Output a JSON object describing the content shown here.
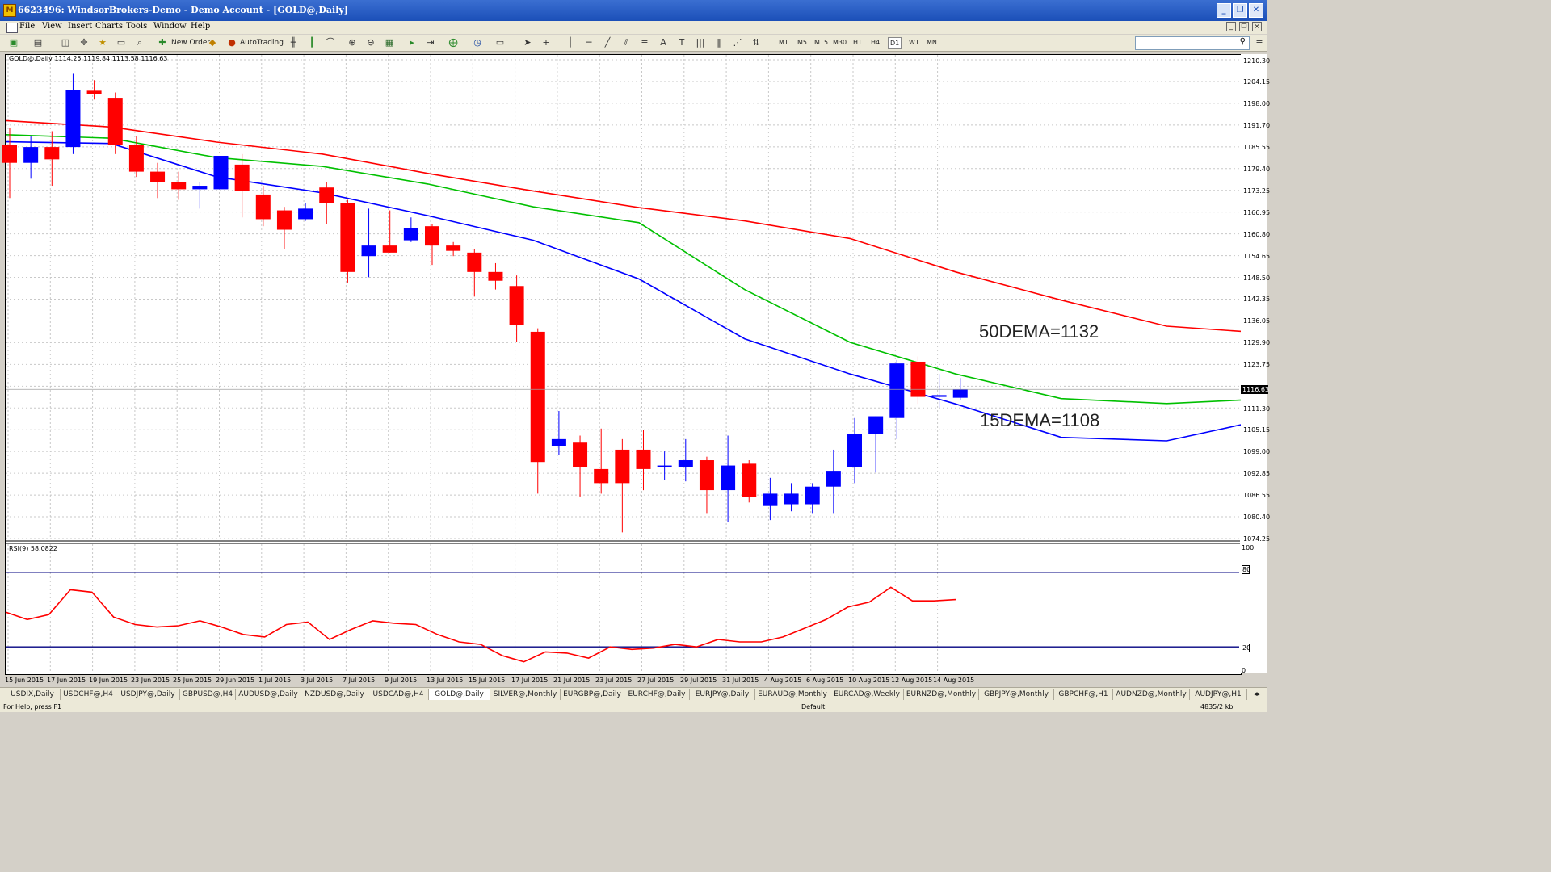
{
  "window": {
    "title": "6623496: WindsorBrokers-Demo - Demo Account - [GOLD@,Daily]",
    "app_icon": "mt4-logo-icon",
    "buttons": [
      "minimize-icon",
      "restore-icon",
      "close-icon"
    ]
  },
  "menu": [
    "File",
    "View",
    "Insert",
    "Charts",
    "Tools",
    "Window",
    "Help"
  ],
  "toolbar": {
    "new_order": "New Order",
    "autotrading": "AutoTrading",
    "timeframes": [
      "M1",
      "M5",
      "M15",
      "M30",
      "H1",
      "H4",
      "D1",
      "W1",
      "MN"
    ],
    "active_timeframe": "D1"
  },
  "chart": {
    "symbol_info": "GOLD@,Daily  1114.25 1119.84 1113.58 1116.63",
    "current_price": "1116.63",
    "rsi_info": "RSI(9) 58.0822",
    "price_labels": [
      "1210.30",
      "1204.15",
      "1198.00",
      "1191.70",
      "1185.55",
      "1179.40",
      "1173.25",
      "1166.95",
      "1160.80",
      "1154.65",
      "1148.50",
      "1142.35",
      "1136.05",
      "1129.90",
      "1123.75",
      "1111.30",
      "1105.15",
      "1099.00",
      "1092.85",
      "1086.55",
      "1080.40",
      "1074.25"
    ],
    "rsi_ticks": [
      "100",
      "80",
      "20",
      "0"
    ],
    "dates": [
      "15 Jun 2015",
      "17 Jun 2015",
      "19 Jun 2015",
      "23 Jun 2015",
      "25 Jun 2015",
      "29 Jun 2015",
      "1 Jul 2015",
      "3 Jul 2015",
      "7 Jul 2015",
      "9 Jul 2015",
      "13 Jul 2015",
      "15 Jul 2015",
      "17 Jul 2015",
      "21 Jul 2015",
      "23 Jul 2015",
      "27 Jul 2015",
      "29 Jul 2015",
      "31 Jul 2015",
      "4 Aug 2015",
      "6 Aug 2015",
      "10 Aug 2015",
      "12 Aug 2015",
      "14 Aug 2015"
    ],
    "annotations": {
      "dema50": "50DEMA=1132",
      "dema15": "15DEMA=1108"
    },
    "colors": {
      "bull": "#0000ff",
      "bear": "#ff0000",
      "ma_slow": "#ff0000",
      "ma_mid": "#00c000",
      "ma_fast": "#0000ff",
      "rsi": "#ff0000",
      "rsi_levels": "#000080"
    }
  },
  "chart_data": {
    "type": "candlestick",
    "symbol": "GOLD@",
    "timeframe": "Daily",
    "ylim": [
      1074.25,
      1210.3
    ],
    "candles": [
      {
        "o": 1186.0,
        "h": 1191.0,
        "l": 1171.0,
        "c": 1181.0
      },
      {
        "o": 1181.0,
        "h": 1188.5,
        "l": 1176.5,
        "c": 1185.5
      },
      {
        "o": 1185.5,
        "h": 1190.0,
        "l": 1174.5,
        "c": 1182.0
      },
      {
        "o": 1185.5,
        "h": 1206.3,
        "l": 1183.5,
        "c": 1201.7
      },
      {
        "o": 1201.5,
        "h": 1204.5,
        "l": 1199.0,
        "c": 1200.5
      },
      {
        "o": 1199.5,
        "h": 1201.0,
        "l": 1183.5,
        "c": 1186.0
      },
      {
        "o": 1186.0,
        "h": 1188.5,
        "l": 1177.0,
        "c": 1178.5
      },
      {
        "o": 1178.5,
        "h": 1181.0,
        "l": 1171.0,
        "c": 1175.5
      },
      {
        "o": 1175.5,
        "h": 1178.5,
        "l": 1170.5,
        "c": 1173.5
      },
      {
        "o": 1173.5,
        "h": 1175.5,
        "l": 1168.0,
        "c": 1174.5
      },
      {
        "o": 1173.5,
        "h": 1188.0,
        "l": 1174.0,
        "c": 1183.0
      },
      {
        "o": 1180.5,
        "h": 1183.5,
        "l": 1165.5,
        "c": 1173.0
      },
      {
        "o": 1172.0,
        "h": 1174.5,
        "l": 1163.0,
        "c": 1165.0
      },
      {
        "o": 1167.5,
        "h": 1168.5,
        "l": 1156.5,
        "c": 1162.0
      },
      {
        "o": 1165.0,
        "h": 1169.5,
        "l": 1164.5,
        "c": 1168.0
      },
      {
        "o": 1174.0,
        "h": 1175.5,
        "l": 1163.5,
        "c": 1169.5
      },
      {
        "o": 1169.5,
        "h": 1170.5,
        "l": 1147.0,
        "c": 1150.0
      },
      {
        "o": 1154.5,
        "h": 1168.0,
        "l": 1148.5,
        "c": 1157.5
      },
      {
        "o": 1157.5,
        "h": 1167.5,
        "l": 1155.5,
        "c": 1155.5
      },
      {
        "o": 1159.0,
        "h": 1165.5,
        "l": 1158.5,
        "c": 1162.5
      },
      {
        "o": 1163.0,
        "h": 1163.5,
        "l": 1152.0,
        "c": 1157.5
      },
      {
        "o": 1157.5,
        "h": 1158.5,
        "l": 1154.5,
        "c": 1156.0
      },
      {
        "o": 1155.5,
        "h": 1156.5,
        "l": 1143.0,
        "c": 1150.0
      },
      {
        "o": 1150.0,
        "h": 1152.5,
        "l": 1145.0,
        "c": 1147.5
      },
      {
        "o": 1146.0,
        "h": 1149.0,
        "l": 1130.0,
        "c": 1135.0
      },
      {
        "o": 1133.0,
        "h": 1134.0,
        "l": 1087.0,
        "c": 1096.0
      },
      {
        "o": 1100.5,
        "h": 1110.5,
        "l": 1098.0,
        "c": 1102.5
      },
      {
        "o": 1101.5,
        "h": 1103.5,
        "l": 1086.0,
        "c": 1094.5
      },
      {
        "o": 1094.0,
        "h": 1105.5,
        "l": 1087.0,
        "c": 1090.0
      },
      {
        "o": 1099.5,
        "h": 1102.5,
        "l": 1076.0,
        "c": 1090.0
      },
      {
        "o": 1099.5,
        "h": 1105.0,
        "l": 1088.0,
        "c": 1094.0
      },
      {
        "o": 1094.5,
        "h": 1099.0,
        "l": 1091.0,
        "c": 1095.0
      },
      {
        "o": 1094.5,
        "h": 1102.5,
        "l": 1090.5,
        "c": 1096.5
      },
      {
        "o": 1096.5,
        "h": 1097.5,
        "l": 1081.5,
        "c": 1088.0
      },
      {
        "o": 1088.0,
        "h": 1103.5,
        "l": 1079.0,
        "c": 1095.0
      },
      {
        "o": 1095.5,
        "h": 1096.5,
        "l": 1084.5,
        "c": 1086.0
      },
      {
        "o": 1083.5,
        "h": 1091.5,
        "l": 1079.5,
        "c": 1087.0
      },
      {
        "o": 1084.0,
        "h": 1090.0,
        "l": 1082.0,
        "c": 1087.0
      },
      {
        "o": 1084.0,
        "h": 1090.0,
        "l": 1081.5,
        "c": 1089.0
      },
      {
        "o": 1089.0,
        "h": 1099.5,
        "l": 1081.5,
        "c": 1093.5
      },
      {
        "o": 1094.5,
        "h": 1108.5,
        "l": 1090.0,
        "c": 1104.0
      },
      {
        "o": 1104.0,
        "h": 1109.0,
        "l": 1093.0,
        "c": 1109.0
      },
      {
        "o": 1108.5,
        "h": 1125.0,
        "l": 1102.5,
        "c": 1124.0
      },
      {
        "o": 1124.5,
        "h": 1126.0,
        "l": 1112.5,
        "c": 1114.5
      },
      {
        "o": 1114.5,
        "h": 1121.0,
        "l": 1111.5,
        "c": 1115.0
      },
      {
        "o": 1114.25,
        "h": 1119.84,
        "l": 1113.58,
        "c": 1116.63
      }
    ],
    "ma_series": [
      {
        "values": [
          [
            0,
            1193.0
          ],
          [
            5,
            1191.2
          ],
          [
            10,
            1186.9
          ],
          [
            15,
            1183.5
          ],
          [
            20,
            1178.0
          ],
          [
            25,
            1173.0
          ],
          [
            30,
            1168.3
          ],
          [
            35,
            1164.5
          ],
          [
            40,
            1159.5
          ],
          [
            45,
            1150.0
          ],
          [
            50,
            1142.0
          ],
          [
            55,
            1134.6
          ],
          [
            60,
            1132.5
          ]
        ]
      },
      {
        "values": [
          [
            0,
            1189.0
          ],
          [
            5,
            1188.0
          ],
          [
            10,
            1182.5
          ],
          [
            15,
            1180.0
          ],
          [
            20,
            1175.0
          ],
          [
            25,
            1168.5
          ],
          [
            30,
            1164.0
          ],
          [
            35,
            1145.0
          ],
          [
            40,
            1130.0
          ],
          [
            45,
            1121.0
          ],
          [
            50,
            1114.0
          ],
          [
            55,
            1112.6
          ],
          [
            60,
            1114.0
          ]
        ]
      },
      {
        "values": [
          [
            0,
            1187.0
          ],
          [
            5,
            1186.5
          ],
          [
            10,
            1177.0
          ],
          [
            15,
            1172.5
          ],
          [
            20,
            1166.0
          ],
          [
            25,
            1159.0
          ],
          [
            30,
            1148.0
          ],
          [
            35,
            1131.0
          ],
          [
            40,
            1121.0
          ],
          [
            45,
            1112.5
          ],
          [
            50,
            1103.0
          ],
          [
            55,
            1102.0
          ],
          [
            60,
            1108.5
          ]
        ]
      }
    ],
    "rsi": {
      "period": 9,
      "last": 58.0822,
      "levels": [
        80,
        20
      ],
      "values": [
        48,
        42,
        46,
        66,
        64,
        44,
        38,
        36,
        37,
        41,
        36,
        30,
        28,
        38,
        40,
        26,
        34,
        41,
        39,
        38,
        30,
        24,
        22,
        13,
        8,
        16,
        15,
        11,
        20,
        18,
        19,
        22,
        20,
        26,
        24,
        24,
        28,
        35,
        42,
        52,
        56,
        68,
        57,
        57,
        58.08
      ]
    }
  },
  "symbol_tabs": [
    "USDIX,Daily",
    "USDCHF@,H4",
    "USDJPY@,Daily",
    "GBPUSD@,H4",
    "AUDUSD@,Daily",
    "NZDUSD@,Daily",
    "USDCAD@,H4",
    "GOLD@,Daily",
    "SILVER@,Monthly",
    "EURGBP@,Daily",
    "EURCHF@,Daily",
    "EURJPY@,Daily",
    "EURAUD@,Monthly",
    "EURCAD@,Weekly",
    "EURNZD@,Monthly",
    "GBPJPY@,Monthly",
    "GBPCHF@,H1",
    "AUDNZD@,Monthly",
    "AUDJPY@,H1"
  ],
  "active_tab": "GOLD@,Daily",
  "status": {
    "help": "For Help, press F1",
    "profile": "Default",
    "traffic": "4835/2 kb"
  }
}
